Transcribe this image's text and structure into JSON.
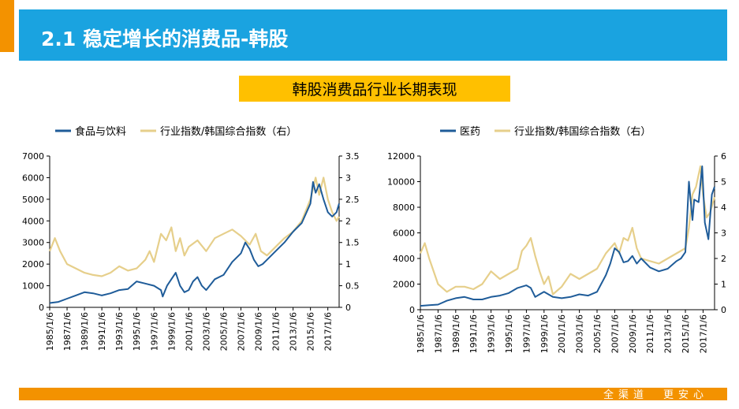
{
  "header": {
    "title": "2.1 稳定增长的消费品-韩股"
  },
  "subtitle": "韩股消费品行业长期表现",
  "footer": {
    "slogan": "全渠道　更安心"
  },
  "colors": {
    "sector": "#1f5c99",
    "index": "#e6cf8b",
    "accent": "#1aa3e0",
    "orange": "#f39200",
    "gold": "#ffc000"
  },
  "chart_data": [
    {
      "type": "line",
      "title": "",
      "legend": [
        "食品与饮料",
        "行业指数/韩国综合指数（右）"
      ],
      "legend_position": "top",
      "x_ticks": [
        "1985/1/6",
        "1987/1/6",
        "1989/1/6",
        "1991/1/6",
        "1993/1/6",
        "1995/1/6",
        "1997/1/6",
        "1999/1/6",
        "2001/1/6",
        "2003/1/6",
        "2005/1/6",
        "2007/1/6",
        "2009/1/6",
        "2011/1/6",
        "2013/1/6",
        "2015/1/6",
        "2017/1/6"
      ],
      "x_range": [
        1985,
        2018.3
      ],
      "y_left": {
        "min": 0,
        "max": 7000,
        "ticks": [
          0,
          1000,
          2000,
          3000,
          4000,
          5000,
          6000,
          7000
        ]
      },
      "y_right": {
        "min": 0,
        "max": 3.5,
        "ticks": [
          0,
          0.5,
          1,
          1.5,
          2,
          2.5,
          3,
          3.5
        ]
      },
      "series": [
        {
          "name": "食品与饮料",
          "axis": "left",
          "x": [
            1985.0,
            1986.0,
            1987.0,
            1988.0,
            1989.0,
            1990.0,
            1991.0,
            1992.0,
            1993.0,
            1994.0,
            1995.0,
            1996.0,
            1997.0,
            1997.8,
            1998.0,
            1998.5,
            1999.0,
            1999.5,
            2000.0,
            2000.5,
            2001.0,
            2001.5,
            2002.0,
            2002.5,
            2003.0,
            2004.0,
            2005.0,
            2006.0,
            2007.0,
            2007.5,
            2008.0,
            2008.5,
            2009.0,
            2009.5,
            2010.0,
            2011.0,
            2012.0,
            2013.0,
            2014.0,
            2015.0,
            2015.3,
            2015.6,
            2016.0,
            2016.5,
            2017.0,
            2017.5,
            2018.0,
            2018.3
          ],
          "values": [
            200,
            250,
            400,
            550,
            700,
            650,
            550,
            650,
            800,
            850,
            1200,
            1100,
            1000,
            800,
            500,
            1000,
            1300,
            1600,
            1000,
            700,
            800,
            1200,
            1400,
            1000,
            800,
            1300,
            1500,
            2100,
            2500,
            3000,
            2700,
            2200,
            1900,
            2000,
            2200,
            2600,
            3000,
            3500,
            3900,
            4800,
            5800,
            5300,
            5700,
            5000,
            4400,
            4200,
            4400,
            4800
          ]
        },
        {
          "name": "行业指数/韩国综合指数（右）",
          "axis": "right",
          "x": [
            1985.0,
            1985.6,
            1986.2,
            1987.0,
            1988.0,
            1989.0,
            1990.0,
            1991.0,
            1992.0,
            1993.0,
            1994.0,
            1995.0,
            1996.0,
            1996.5,
            1997.0,
            1997.8,
            1998.4,
            1999.0,
            1999.5,
            2000.0,
            2000.5,
            2001.0,
            2002.0,
            2003.0,
            2004.0,
            2005.0,
            2006.0,
            2007.0,
            2008.0,
            2008.7,
            2009.3,
            2010.0,
            2011.0,
            2012.0,
            2013.0,
            2014.0,
            2015.0,
            2015.6,
            2016.0,
            2016.5,
            2017.0,
            2017.5,
            2018.0,
            2018.3
          ],
          "values": [
            1.3,
            1.6,
            1.3,
            1.0,
            0.9,
            0.8,
            0.75,
            0.72,
            0.8,
            0.95,
            0.85,
            0.9,
            1.1,
            1.3,
            1.05,
            1.7,
            1.55,
            1.85,
            1.3,
            1.6,
            1.2,
            1.4,
            1.55,
            1.3,
            1.6,
            1.7,
            1.8,
            1.65,
            1.45,
            1.7,
            1.3,
            1.2,
            1.4,
            1.6,
            1.75,
            2.0,
            2.5,
            3.0,
            2.6,
            3.0,
            2.5,
            2.2,
            2.0,
            2.1
          ]
        }
      ]
    },
    {
      "type": "line",
      "title": "",
      "legend": [
        "医药",
        "行业指数/韩国综合指数（右）"
      ],
      "legend_position": "top",
      "x_ticks": [
        "1985/1/6",
        "1987/1/6",
        "1989/1/6",
        "1991/1/6",
        "1993/1/6",
        "1995/1/6",
        "1997/1/6",
        "1999/1/6",
        "2001/1/6",
        "2003/1/6",
        "2005/1/6",
        "2007/1/6",
        "2009/1/6",
        "2011/1/6",
        "2013/1/6",
        "2015/1/6",
        "2017/1/6"
      ],
      "x_range": [
        1985,
        2018.3
      ],
      "y_left": {
        "min": 0,
        "max": 12000,
        "ticks": [
          0,
          2000,
          4000,
          6000,
          8000,
          10000,
          12000
        ]
      },
      "y_right": {
        "min": 0,
        "max": 6,
        "ticks": [
          0,
          1,
          2,
          3,
          4,
          5,
          6
        ]
      },
      "series": [
        {
          "name": "医药",
          "axis": "left",
          "x": [
            1985.0,
            1986.0,
            1987.0,
            1988.0,
            1989.0,
            1990.0,
            1991.0,
            1992.0,
            1993.0,
            1994.0,
            1995.0,
            1996.0,
            1997.0,
            1997.5,
            1998.0,
            1998.5,
            1999.0,
            2000.0,
            2001.0,
            2002.0,
            2003.0,
            2004.0,
            2005.0,
            2006.0,
            2006.5,
            2007.0,
            2007.5,
            2008.0,
            2008.5,
            2009.0,
            2009.5,
            2010.0,
            2011.0,
            2012.0,
            2013.0,
            2014.0,
            2014.5,
            2015.0,
            2015.4,
            2015.8,
            2016.0,
            2016.5,
            2016.9,
            2017.2,
            2017.6,
            2018.0,
            2018.3
          ],
          "values": [
            300,
            350,
            400,
            700,
            900,
            1000,
            800,
            800,
            1000,
            1100,
            1300,
            1700,
            1900,
            1700,
            1000,
            1200,
            1400,
            1000,
            900,
            1000,
            1200,
            1100,
            1400,
            2700,
            3600,
            4800,
            4500,
            3700,
            3800,
            4200,
            3600,
            4000,
            3300,
            3000,
            3200,
            3800,
            4000,
            4500,
            10000,
            7000,
            8600,
            8400,
            11200,
            6800,
            5500,
            9000,
            9600
          ]
        },
        {
          "name": "行业指数/韩国综合指数（右）",
          "axis": "right",
          "x": [
            1985.0,
            1985.5,
            1986.0,
            1987.0,
            1988.0,
            1989.0,
            1990.0,
            1991.0,
            1992.0,
            1993.0,
            1994.0,
            1995.0,
            1996.0,
            1996.5,
            1997.0,
            1997.5,
            1998.0,
            1998.5,
            1999.0,
            1999.5,
            2000.0,
            2001.0,
            2002.0,
            2003.0,
            2004.0,
            2005.0,
            2006.0,
            2007.0,
            2007.5,
            2008.0,
            2008.5,
            2009.0,
            2009.5,
            2010.0,
            2011.0,
            2012.0,
            2013.0,
            2014.0,
            2015.0,
            2015.4,
            2015.8,
            2016.2,
            2016.7,
            2017.0,
            2017.4,
            2017.8,
            2018.3
          ],
          "values": [
            2.2,
            2.6,
            2.0,
            1.0,
            0.7,
            0.9,
            0.9,
            0.8,
            1.0,
            1.5,
            1.2,
            1.4,
            1.6,
            2.3,
            2.5,
            2.8,
            2.1,
            1.5,
            1.0,
            1.3,
            0.6,
            0.9,
            1.4,
            1.2,
            1.4,
            1.6,
            2.2,
            2.6,
            2.2,
            2.8,
            2.7,
            3.2,
            2.4,
            2.0,
            1.9,
            1.8,
            2.0,
            2.2,
            2.4,
            3.2,
            4.5,
            4.8,
            5.6,
            4.5,
            3.6,
            3.8,
            4.4
          ]
        }
      ]
    }
  ]
}
